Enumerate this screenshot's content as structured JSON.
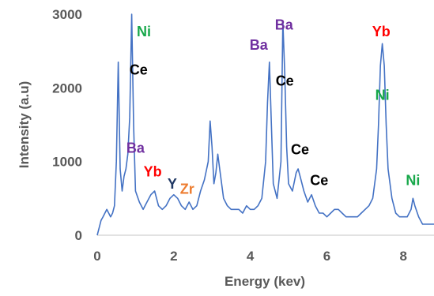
{
  "chart_data": {
    "type": "line",
    "xlabel": "Energy (kev)",
    "ylabel": "Intensity (a.u)",
    "xlim": [
      0,
      8.8
    ],
    "ylim": [
      0,
      3000
    ],
    "xticks": [
      0,
      2,
      4,
      6,
      8
    ],
    "yticks": [
      0,
      1000,
      2000,
      3000
    ],
    "grid": false,
    "legend": "none",
    "series": [
      {
        "color": "#4472c4",
        "x": [
          0,
          0.05,
          0.1,
          0.15,
          0.2,
          0.25,
          0.3,
          0.35,
          0.4,
          0.45,
          0.5,
          0.55,
          0.6,
          0.65,
          0.7,
          0.75,
          0.8,
          0.85,
          0.9,
          0.95,
          1.0,
          1.1,
          1.2,
          1.3,
          1.4,
          1.5,
          1.6,
          1.7,
          1.8,
          1.9,
          2.0,
          2.1,
          2.2,
          2.3,
          2.4,
          2.5,
          2.6,
          2.7,
          2.8,
          2.9,
          2.95,
          3.0,
          3.05,
          3.1,
          3.15,
          3.2,
          3.3,
          3.4,
          3.5,
          3.6,
          3.7,
          3.8,
          3.9,
          4.0,
          4.1,
          4.2,
          4.3,
          4.4,
          4.45,
          4.5,
          4.55,
          4.6,
          4.7,
          4.8,
          4.85,
          4.9,
          4.95,
          5.0,
          5.1,
          5.2,
          5.25,
          5.3,
          5.4,
          5.5,
          5.55,
          5.6,
          5.7,
          5.8,
          5.9,
          6.0,
          6.1,
          6.2,
          6.3,
          6.4,
          6.5,
          6.6,
          6.7,
          6.8,
          6.9,
          7.0,
          7.1,
          7.2,
          7.3,
          7.35,
          7.4,
          7.45,
          7.5,
          7.55,
          7.6,
          7.7,
          7.8,
          7.9,
          8.0,
          8.1,
          8.2,
          8.25,
          8.3,
          8.4,
          8.5,
          8.6,
          8.7,
          8.8
        ],
        "values": [
          0,
          100,
          200,
          250,
          300,
          350,
          300,
          250,
          300,
          400,
          1000,
          2350,
          900,
          600,
          800,
          900,
          1100,
          1600,
          3000,
          1500,
          600,
          450,
          350,
          450,
          550,
          600,
          400,
          350,
          400,
          500,
          550,
          500,
          400,
          350,
          450,
          350,
          400,
          600,
          750,
          1000,
          1550,
          1200,
          700,
          850,
          1100,
          900,
          500,
          400,
          350,
          350,
          350,
          300,
          400,
          350,
          350,
          400,
          500,
          1000,
          1800,
          2350,
          1500,
          700,
          500,
          1000,
          2900,
          2200,
          1200,
          700,
          600,
          850,
          900,
          800,
          600,
          450,
          500,
          550,
          400,
          300,
          300,
          250,
          300,
          350,
          350,
          300,
          250,
          250,
          250,
          250,
          300,
          350,
          400,
          500,
          900,
          1500,
          2300,
          2600,
          2300,
          1500,
          900,
          500,
          300,
          250,
          250,
          250,
          350,
          500,
          400,
          250,
          150,
          150,
          150,
          150
        ]
      }
    ],
    "annotations": [
      {
        "text": "Ni",
        "x": 1.22,
        "y": 2700,
        "color": "#18a84b"
      },
      {
        "text": "Ce",
        "x": 1.08,
        "y": 2180,
        "color": "#000000"
      },
      {
        "text": "Ba",
        "x": 1.0,
        "y": 1120,
        "color": "#7030a0"
      },
      {
        "text": "Yb",
        "x": 1.45,
        "y": 800,
        "color": "#ff0000"
      },
      {
        "text": "Y",
        "x": 1.96,
        "y": 630,
        "color": "#1f3864"
      },
      {
        "text": "Zr",
        "x": 2.35,
        "y": 560,
        "color": "#ed7d31"
      },
      {
        "text": "Ba",
        "x": 4.22,
        "y": 2520,
        "color": "#7030a0"
      },
      {
        "text": "Ba",
        "x": 4.88,
        "y": 2790,
        "color": "#7030a0"
      },
      {
        "text": "Ce",
        "x": 4.9,
        "y": 2030,
        "color": "#000000"
      },
      {
        "text": "Ce",
        "x": 5.3,
        "y": 1100,
        "color": "#000000"
      },
      {
        "text": "Ce",
        "x": 5.8,
        "y": 680,
        "color": "#000000"
      },
      {
        "text": "Yb",
        "x": 7.42,
        "y": 2700,
        "color": "#ff0000"
      },
      {
        "text": "Ni",
        "x": 7.45,
        "y": 1840,
        "color": "#18a84b"
      },
      {
        "text": "Ni",
        "x": 8.25,
        "y": 680,
        "color": "#18a84b"
      }
    ]
  }
}
